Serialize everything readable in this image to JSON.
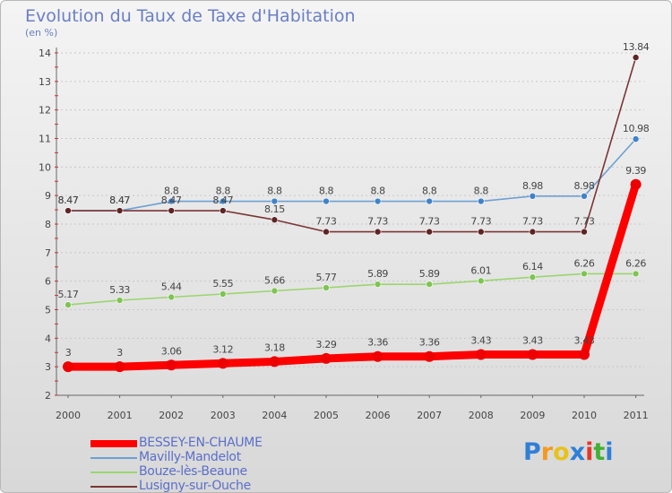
{
  "chart_data": {
    "type": "line",
    "title": "Evolution du Taux de Taxe d'Habitation",
    "ylabel": "(en %)",
    "xlabel": "",
    "categories": [
      "2000",
      "2001",
      "2002",
      "2003",
      "2004",
      "2005",
      "2006",
      "2007",
      "2008",
      "2009",
      "2010",
      "2011"
    ],
    "ylim": [
      2,
      14
    ],
    "yticks": [
      "2",
      "3",
      "4",
      "5",
      "6",
      "7",
      "8",
      "9",
      "10",
      "11",
      "12",
      "13",
      "14"
    ],
    "grid": "horizontal-dashed",
    "legend_position": "bottom-left",
    "series": [
      {
        "name": "Mavilly-Mandelot",
        "color": "#6da0d3",
        "marker": "#3f82c8",
        "values": [
          8.47,
          8.47,
          8.8,
          8.8,
          8.8,
          8.8,
          8.8,
          8.8,
          8.8,
          8.98,
          8.98,
          10.98
        ],
        "labels": [
          "8.47",
          "8.47",
          "8.8",
          "8.8",
          "8.8",
          "8.8",
          "8.8",
          "8.8",
          "8.8",
          "8.98",
          "8.98",
          "10.98"
        ]
      },
      {
        "name": "Lusigny-sur-Ouche",
        "color": "#7b3535",
        "marker": "#5e2424",
        "values": [
          8.47,
          8.47,
          8.47,
          8.47,
          8.15,
          7.73,
          7.73,
          7.73,
          7.73,
          7.73,
          7.73,
          13.84
        ],
        "labels": [
          "8.47",
          "8.47",
          "8.47",
          "8.47",
          "8.15",
          "7.73",
          "7.73",
          "7.73",
          "7.73",
          "7.73",
          "7.73",
          "13.84"
        ]
      },
      {
        "name": "Bouze-lès-Beaune",
        "color": "#9ad56e",
        "marker": "#7ec451",
        "values": [
          5.17,
          5.33,
          5.44,
          5.55,
          5.66,
          5.77,
          5.89,
          5.89,
          6.01,
          6.14,
          6.26,
          6.26
        ],
        "labels": [
          "5.17",
          "5.33",
          "5.44",
          "5.55",
          "5.66",
          "5.77",
          "5.89",
          "5.89",
          "6.01",
          "6.14",
          "6.26",
          "6.26"
        ]
      },
      {
        "name": "BESSEY-EN-CHAUME",
        "color": "#ff0000",
        "marker": "#ee0000",
        "thick": true,
        "values": [
          3,
          3,
          3.06,
          3.12,
          3.18,
          3.29,
          3.36,
          3.36,
          3.43,
          3.43,
          3.43,
          9.39
        ],
        "labels": [
          "3",
          "3",
          "3.06",
          "3.12",
          "3.18",
          "3.29",
          "3.36",
          "3.36",
          "3.43",
          "3.43",
          "3.43",
          "9.39"
        ]
      }
    ],
    "legend_order": [
      "BESSEY-EN-CHAUME",
      "Mavilly-Mandelot",
      "Bouze-lès-Beaune",
      "Lusigny-sur-Ouche"
    ]
  },
  "brand": {
    "letters": [
      "P",
      "r",
      "o",
      "x",
      "i",
      "t",
      "i"
    ],
    "colors": [
      "#2f7fd6",
      "#f39a1f",
      "#e8c21b",
      "#2f7fd6",
      "#e5372b",
      "#43b035",
      "#2f7fd6"
    ]
  }
}
